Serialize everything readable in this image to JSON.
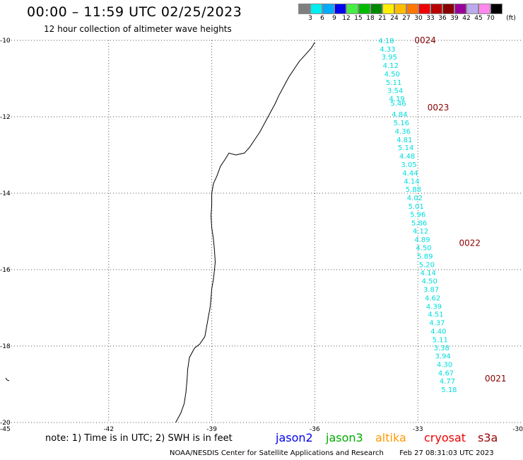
{
  "header": {
    "title": "00:00 – 11:59 UTC 02/25/2023",
    "subtitle": "12 hour collection of altimeter wave heights"
  },
  "color_scale": {
    "labels": [
      "3",
      "6",
      "9",
      "12",
      "15",
      "18",
      "21",
      "24",
      "27",
      "30",
      "33",
      "36",
      "39",
      "42",
      "45",
      "70"
    ],
    "unit": "(ft)",
    "colors": [
      "#7f7f7f",
      "#00eeee",
      "#00aaff",
      "#0000ee",
      "#44ee44",
      "#00bb00",
      "#008800",
      "#ffee00",
      "#ffbb00",
      "#ff7700",
      "#ee0000",
      "#bb0000",
      "#880000",
      "#990099",
      "#bbaaee",
      "#ff88ee",
      "#000000"
    ]
  },
  "axes": {
    "x_ticks": [
      "-45",
      "-42",
      "-39",
      "-36",
      "-33",
      "-30"
    ],
    "y_ticks": [
      "-10",
      "-12",
      "-14",
      "-16",
      "-18",
      "-20"
    ],
    "x_range": [
      -45,
      -30
    ],
    "y_range": [
      -20,
      -10
    ]
  },
  "track": {
    "color": "#00dddd",
    "time_color": "#880000",
    "points": [
      {
        "lon": -33.92,
        "lat": -10.0,
        "swh": "4.18"
      },
      {
        "lon": -33.88,
        "lat": -10.22,
        "swh": "4.33"
      },
      {
        "lon": -33.83,
        "lat": -10.43,
        "swh": "3.95"
      },
      {
        "lon": -33.79,
        "lat": -10.65,
        "swh": "4.12"
      },
      {
        "lon": -33.75,
        "lat": -10.87,
        "swh": "4.50"
      },
      {
        "lon": -33.7,
        "lat": -11.09,
        "swh": "5.11"
      },
      {
        "lon": -33.66,
        "lat": -11.31,
        "swh": "3.54"
      },
      {
        "lon": -33.61,
        "lat": -11.52,
        "swh": "4.19"
      },
      {
        "lon": -33.57,
        "lat": -11.64,
        "swh": "5.46"
      },
      {
        "lon": -33.53,
        "lat": -11.93,
        "swh": "4.84"
      },
      {
        "lon": -33.48,
        "lat": -12.15,
        "swh": "5.16"
      },
      {
        "lon": -33.44,
        "lat": -12.37,
        "swh": "4.36"
      },
      {
        "lon": -33.39,
        "lat": -12.59,
        "swh": "4.81"
      },
      {
        "lon": -33.35,
        "lat": -12.8,
        "swh": "5.14"
      },
      {
        "lon": -33.31,
        "lat": -13.02,
        "swh": "4.48"
      },
      {
        "lon": -33.26,
        "lat": -13.24,
        "swh": "3.05"
      },
      {
        "lon": -33.22,
        "lat": -13.46,
        "swh": "4.44"
      },
      {
        "lon": -33.18,
        "lat": -13.68,
        "swh": "4.14"
      },
      {
        "lon": -33.13,
        "lat": -13.89,
        "swh": "5.88"
      },
      {
        "lon": -33.09,
        "lat": -14.11,
        "swh": "4.02"
      },
      {
        "lon": -33.05,
        "lat": -14.33,
        "swh": "5.01"
      },
      {
        "lon": -33.0,
        "lat": -14.55,
        "swh": "5.96"
      },
      {
        "lon": -32.96,
        "lat": -14.77,
        "swh": "5.86"
      },
      {
        "lon": -32.92,
        "lat": -14.98,
        "swh": "4.12"
      },
      {
        "lon": -32.87,
        "lat": -15.2,
        "swh": "4.89"
      },
      {
        "lon": -32.83,
        "lat": -15.42,
        "swh": "4.50"
      },
      {
        "lon": -32.79,
        "lat": -15.64,
        "swh": "5.89"
      },
      {
        "lon": -32.74,
        "lat": -15.86,
        "swh": "5.20"
      },
      {
        "lon": -32.7,
        "lat": -16.07,
        "swh": "4.14"
      },
      {
        "lon": -32.66,
        "lat": -16.29,
        "swh": "4.50"
      },
      {
        "lon": -32.61,
        "lat": -16.51,
        "swh": "3.87"
      },
      {
        "lon": -32.57,
        "lat": -16.73,
        "swh": "4.62"
      },
      {
        "lon": -32.53,
        "lat": -16.95,
        "swh": "4.39"
      },
      {
        "lon": -32.48,
        "lat": -17.16,
        "swh": "4.51"
      },
      {
        "lon": -32.44,
        "lat": -17.38,
        "swh": "4.37"
      },
      {
        "lon": -32.4,
        "lat": -17.6,
        "swh": "4.40"
      },
      {
        "lon": -32.35,
        "lat": -17.82,
        "swh": "5.11"
      },
      {
        "lon": -32.31,
        "lat": -18.04,
        "swh": "3.38"
      },
      {
        "lon": -32.27,
        "lat": -18.25,
        "swh": "3.94"
      },
      {
        "lon": -32.22,
        "lat": -18.47,
        "swh": "4.30"
      },
      {
        "lon": -32.18,
        "lat": -18.69,
        "swh": "4.67"
      },
      {
        "lon": -32.14,
        "lat": -18.91,
        "swh": "4.77"
      },
      {
        "lon": -32.09,
        "lat": -19.13,
        "swh": "5.18"
      }
    ],
    "time_labels": [
      {
        "text": "0024",
        "lon": -33.1,
        "lat": -10.0
      },
      {
        "text": "0023",
        "lon": -32.72,
        "lat": -11.76
      },
      {
        "text": "0022",
        "lon": -31.8,
        "lat": -15.31
      },
      {
        "text": "0021",
        "lon": -31.05,
        "lat": -18.85
      }
    ]
  },
  "coastline": {
    "color": "#000000",
    "points": [
      [
        -36.0,
        -10.05
      ],
      [
        -36.1,
        -10.2
      ],
      [
        -36.25,
        -10.35
      ],
      [
        -36.45,
        -10.55
      ],
      [
        -36.6,
        -10.75
      ],
      [
        -36.75,
        -10.95
      ],
      [
        -36.9,
        -11.2
      ],
      [
        -37.05,
        -11.45
      ],
      [
        -37.15,
        -11.65
      ],
      [
        -37.3,
        -11.9
      ],
      [
        -37.45,
        -12.15
      ],
      [
        -37.6,
        -12.4
      ],
      [
        -37.75,
        -12.6
      ],
      [
        -37.9,
        -12.8
      ],
      [
        -38.05,
        -12.95
      ],
      [
        -38.3,
        -13.0
      ],
      [
        -38.5,
        -12.95
      ],
      [
        -38.6,
        -13.1
      ],
      [
        -38.75,
        -13.3
      ],
      [
        -38.85,
        -13.55
      ],
      [
        -38.95,
        -13.75
      ],
      [
        -39.0,
        -14.0
      ],
      [
        -39.0,
        -14.3
      ],
      [
        -39.02,
        -14.6
      ],
      [
        -39.0,
        -14.9
      ],
      [
        -38.95,
        -15.2
      ],
      [
        -38.92,
        -15.5
      ],
      [
        -38.9,
        -15.8
      ],
      [
        -38.92,
        -16.0
      ],
      [
        -38.95,
        -16.25
      ],
      [
        -39.0,
        -16.5
      ],
      [
        -39.02,
        -16.75
      ],
      [
        -39.05,
        -17.0
      ],
      [
        -39.1,
        -17.25
      ],
      [
        -39.15,
        -17.5
      ],
      [
        -39.2,
        -17.75
      ],
      [
        -39.35,
        -17.95
      ],
      [
        -39.5,
        -18.05
      ],
      [
        -39.65,
        -18.3
      ],
      [
        -39.7,
        -18.6
      ],
      [
        -39.72,
        -18.9
      ],
      [
        -39.75,
        -19.2
      ],
      [
        -39.8,
        -19.5
      ],
      [
        -39.9,
        -19.75
      ],
      [
        -40.05,
        -20.0
      ]
    ]
  },
  "footer": {
    "note": "note: 1) Time is in UTC; 2) SWH is in feet",
    "legend": [
      {
        "label": "jason2",
        "color": "#0000ee"
      },
      {
        "label": "jason3",
        "color": "#00aa00"
      },
      {
        "label": "altika",
        "color": "#ff9900"
      },
      {
        "label": "cryosat",
        "color": "#ee0000"
      },
      {
        "label": "s3a",
        "color": "#990000"
      }
    ],
    "credit": "NOAA/NESDIS Center for Satellite Applications and Research",
    "timestamp": "Feb 27 08:31:03 UTC 2023"
  }
}
